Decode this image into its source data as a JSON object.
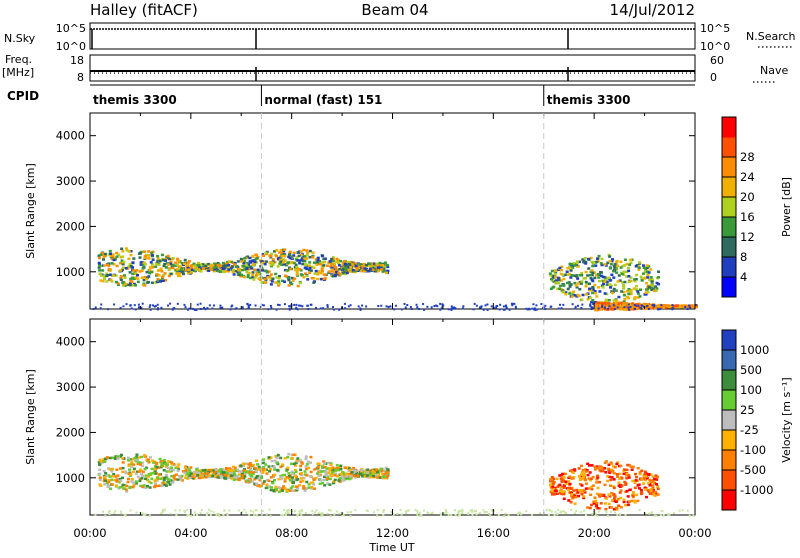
{
  "header": {
    "station": "Halley (fitACF)",
    "beam": "Beam 04",
    "date": "14/Jul/2012"
  },
  "strip_labels": {
    "nsky": "N.Sky",
    "nsky_ticks": [
      "10^5",
      "10^0"
    ],
    "freq": "Freq.",
    "freq_unit": "[MHz]",
    "freq_ticks": [
      "18",
      "8"
    ],
    "cpid": "CPID",
    "nsearch": "N.Search",
    "nsearch_ticks": [
      "10^5",
      "10^0"
    ],
    "nave": "Nave",
    "nave_ticks": [
      "60",
      "0"
    ]
  },
  "cpid_segments": [
    {
      "label": "themis 3300",
      "start_h": 0,
      "end_h": 6.8
    },
    {
      "label": "normal (fast) 151",
      "start_h": 6.8,
      "end_h": 18.0
    },
    {
      "label": "themis 3300",
      "start_h": 18.0,
      "end_h": 24
    }
  ],
  "colors": {
    "power": [
      "#0000ff",
      "#1f3fbf",
      "#2e6b5e",
      "#3a9a3a",
      "#b0d020",
      "#f0b000",
      "#ff8c00",
      "#ff5000",
      "#ff0000"
    ],
    "velocity": [
      "#2040c0",
      "#3868b0",
      "#3c8c3c",
      "#66cc33",
      "#bdbdbd",
      "#ffb000",
      "#ff8000",
      "#ff5000",
      "#ff0000"
    ]
  },
  "chart_data": [
    {
      "type": "heatmap",
      "panel": "power",
      "ylabel": "Slant Range [km]",
      "ylim": [
        180,
        4500
      ],
      "yticks": [
        "1000",
        "2000",
        "3000",
        "4000"
      ],
      "xlim_hours": [
        0,
        24
      ],
      "colorbar": {
        "label": "Power [dB]",
        "ticks": [
          "4",
          "8",
          "12",
          "16",
          "20",
          "24",
          "28"
        ],
        "range": [
          0,
          32
        ]
      },
      "features": [
        {
          "desc": "main echo band",
          "start_h": 0.3,
          "end_h": 11.8,
          "range_km": [
            700,
            1550
          ],
          "power_db": [
            4,
            24
          ]
        },
        {
          "desc": "post-midnight echoes",
          "start_h": 18.2,
          "end_h": 22.5,
          "range_km": [
            300,
            1400
          ],
          "power_db": [
            4,
            20
          ]
        },
        {
          "desc": "near-range strong echoes",
          "start_h": 20.0,
          "end_h": 24.0,
          "range_km": [
            180,
            350
          ],
          "power_db": [
            20,
            30
          ]
        }
      ]
    },
    {
      "type": "heatmap",
      "panel": "velocity",
      "ylabel": "Slant Range [km]",
      "ylim": [
        180,
        4500
      ],
      "yticks": [
        "1000",
        "2000",
        "3000",
        "4000"
      ],
      "xlim_hours": [
        0,
        24
      ],
      "xticks": [
        "00:00",
        "04:00",
        "08:00",
        "12:00",
        "16:00",
        "20:00",
        "00:00"
      ],
      "xlabel": "Time UT",
      "colorbar": {
        "label": "Velocity [m s^-1]",
        "ticks": [
          "1000",
          "500",
          "100",
          "25",
          "-25",
          "-100",
          "-500",
          "-1000"
        ]
      },
      "features": [
        {
          "desc": "main echo band",
          "start_h": 0.3,
          "end_h": 11.8,
          "range_km": [
            700,
            1550
          ],
          "velocity_ms": [
            -500,
            100
          ]
        },
        {
          "desc": "post-midnight echoes",
          "start_h": 18.2,
          "end_h": 22.5,
          "range_km": [
            300,
            1400
          ],
          "velocity_ms": [
            -1000,
            -100
          ]
        }
      ]
    }
  ]
}
